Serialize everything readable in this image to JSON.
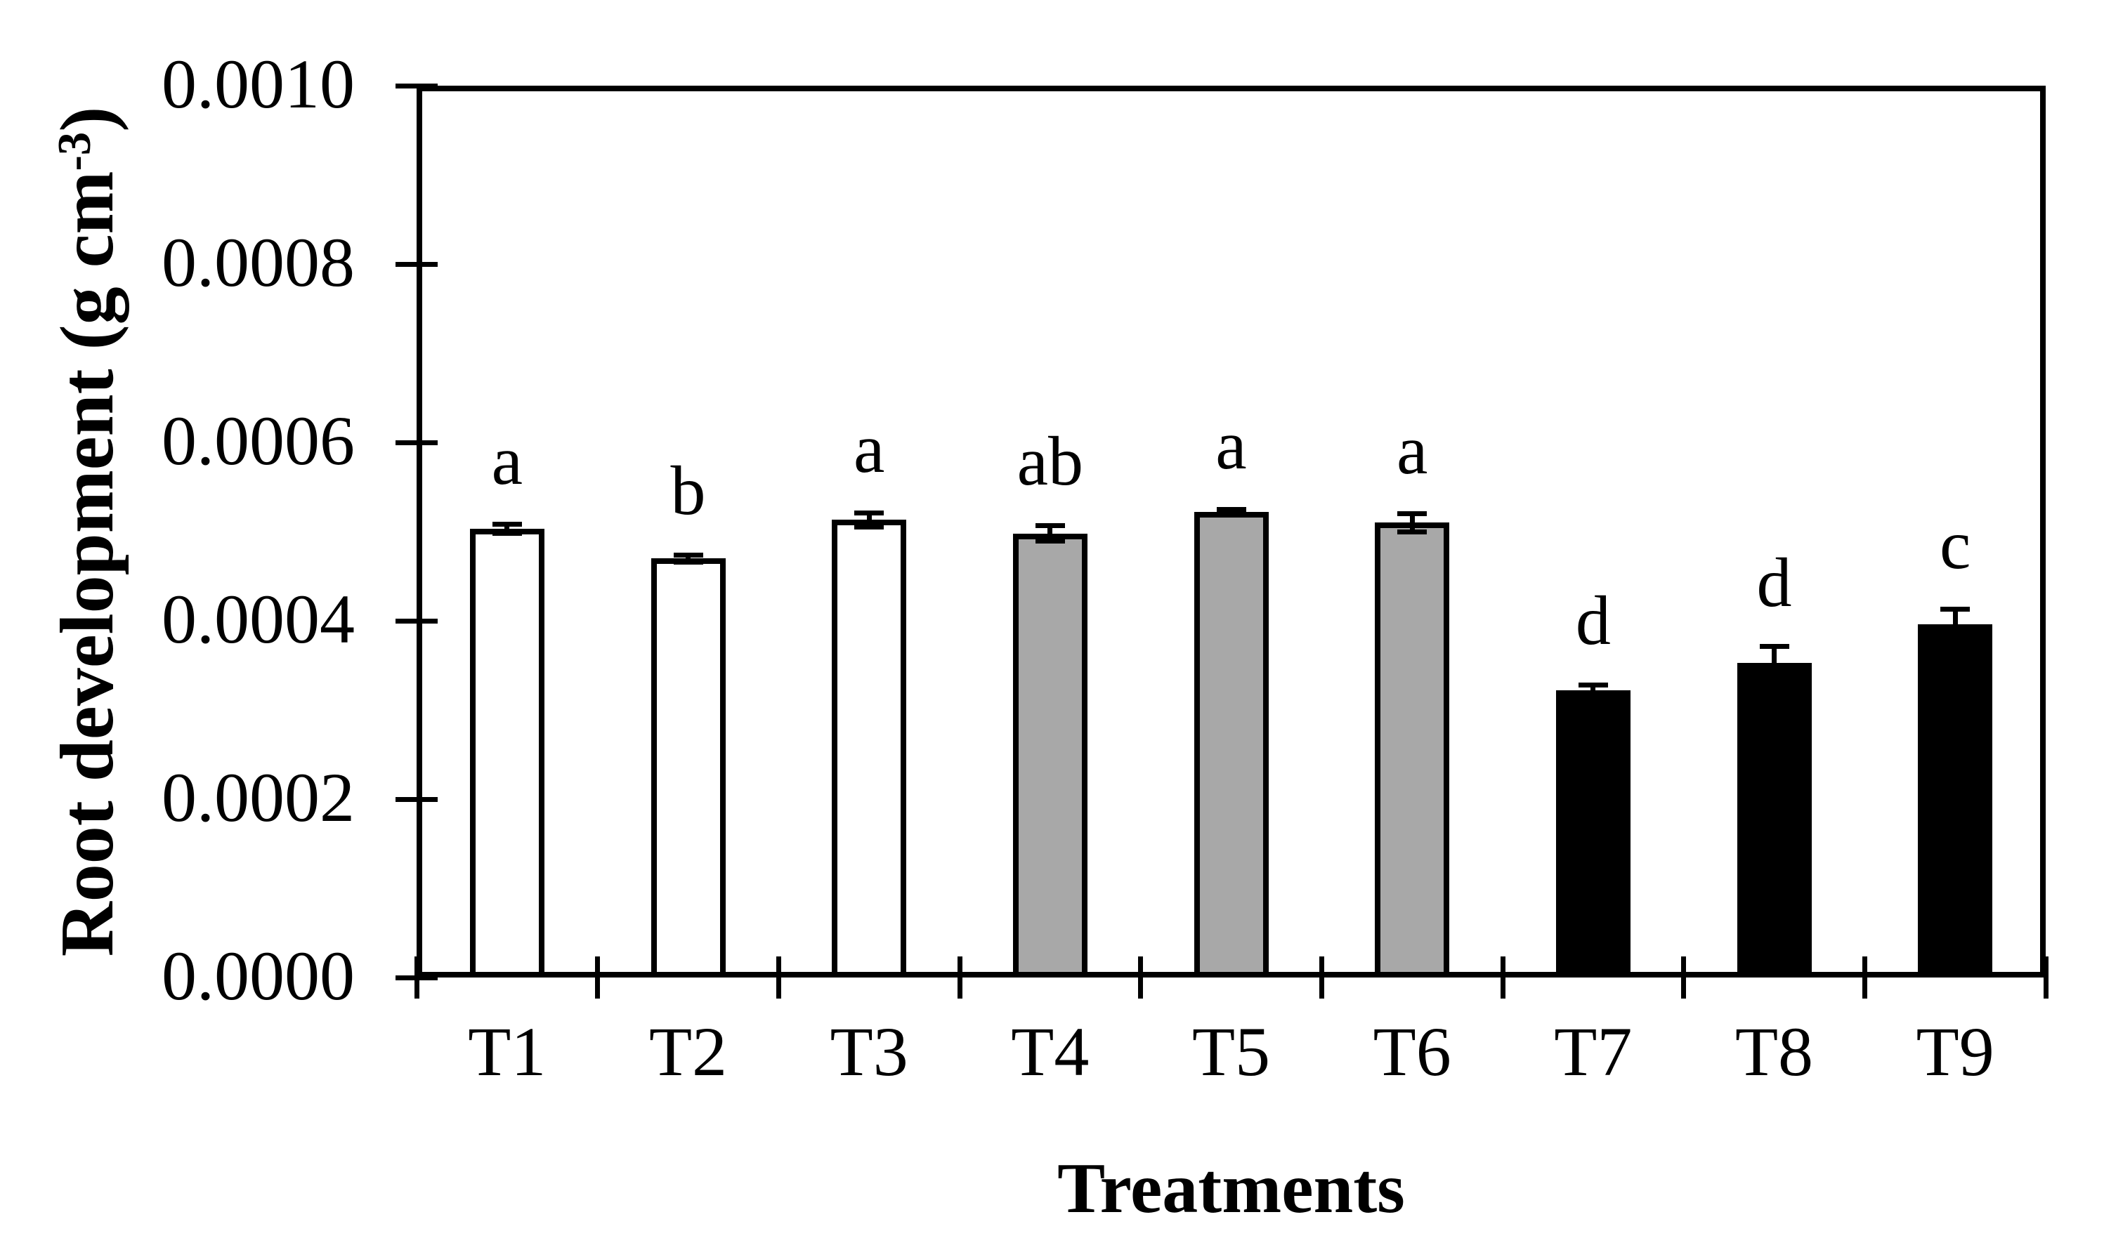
{
  "figure": {
    "y_axis_title_prefix": "Root development (g cm",
    "y_axis_title_sup": "-3",
    "y_axis_title_suffix": ")",
    "x_axis_title": "Treatments"
  },
  "chart_data": {
    "type": "bar",
    "title": "",
    "xlabel": "Treatments",
    "ylabel": "Root development (g cm^-3)",
    "categories": [
      "T1",
      "T2",
      "T3",
      "T4",
      "T5",
      "T6",
      "T7",
      "T8",
      "T9"
    ],
    "values": [
      0.000503,
      0.00047,
      0.000513,
      0.000498,
      0.000522,
      0.00051,
      0.000322,
      0.000353,
      0.000396
    ],
    "errors": [
      5e-06,
      4e-06,
      8e-06,
      9e-06,
      3e-06,
      1e-05,
      6e-06,
      1.8e-05,
      1.7e-05
    ],
    "sig_letters": [
      "a",
      "b",
      "a",
      "ab",
      "a",
      "a",
      "d",
      "d",
      "c"
    ],
    "bar_colors": [
      "#ffffff",
      "#ffffff",
      "#ffffff",
      "#a8a8a8",
      "#a8a8a8",
      "#a8a8a8",
      "#000000",
      "#000000",
      "#000000"
    ],
    "bar_outline_color": "#000000",
    "ylim": [
      0,
      0.001
    ],
    "ytick_step": 0.0002,
    "ytick_labels": [
      "0.0000",
      "0.0002",
      "0.0004",
      "0.0006",
      "0.0008",
      "0.0010"
    ],
    "grid": false,
    "legend_position": "none",
    "plot_border": "box",
    "tick_style": "cross"
  }
}
